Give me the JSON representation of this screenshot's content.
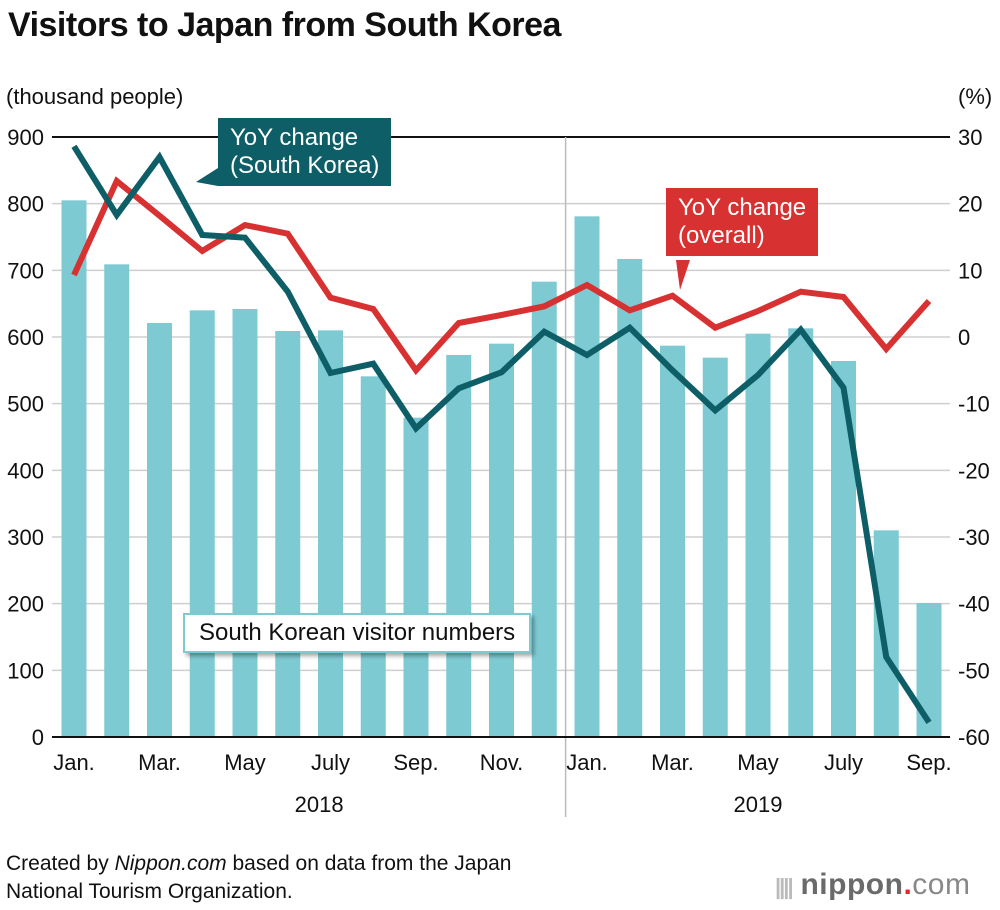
{
  "chart_data": {
    "type": "bar+line",
    "title": "Visitors to Japan from South Korea",
    "ylabel_left": "(thousand people)",
    "ylabel_right": "(%)",
    "ylim_left": [
      0,
      900
    ],
    "ylim_right": [
      -60,
      30
    ],
    "left_ticks": [
      "0",
      "100",
      "200",
      "300",
      "400",
      "500",
      "600",
      "700",
      "800",
      "900"
    ],
    "right_ticks": [
      "-60",
      "-50",
      "-40",
      "-30",
      "-20",
      "-10",
      "0",
      "10",
      "20",
      "30"
    ],
    "categories": [
      "Jan. 2018",
      "Feb. 2018",
      "Mar. 2018",
      "Apr. 2018",
      "May 2018",
      "Jun. 2018",
      "Jul. 2018",
      "Aug. 2018",
      "Sep. 2018",
      "Oct. 2018",
      "Nov. 2018",
      "Dec. 2018",
      "Jan. 2019",
      "Feb. 2019",
      "Mar. 2019",
      "Apr. 2019",
      "May 2019",
      "Jun. 2019",
      "Jul. 2019",
      "Aug. 2019",
      "Sep. 2019"
    ],
    "x_tick_labels": [
      "Jan.",
      "",
      "Mar.",
      "",
      "May",
      "",
      "July",
      "",
      "Sep.",
      "",
      "Nov.",
      "",
      "Jan.",
      "",
      "Mar.",
      "",
      "May",
      "",
      "July",
      "",
      "Sep."
    ],
    "year_labels": [
      "2018",
      "2019"
    ],
    "series": [
      {
        "name": "South Korean visitor numbers",
        "type": "bar",
        "axis": "left",
        "color": "#7ecad3",
        "values": [
          805,
          709,
          621,
          640,
          642,
          609,
          610,
          541,
          479,
          573,
          590,
          683,
          781,
          717,
          587,
          569,
          605,
          613,
          564,
          310,
          201
        ]
      },
      {
        "name": "YoY change (South Korea)",
        "type": "line",
        "axis": "right",
        "color": "#0d5e66",
        "values": [
          28.6,
          18.3,
          27,
          15.3,
          14.9,
          6.8,
          -5.4,
          -4,
          -13.7,
          -7.7,
          -5.3,
          0.8,
          -2.7,
          1.4,
          -5,
          -11,
          -5.7,
          1.1,
          -7.6,
          -48,
          -57.8
        ]
      },
      {
        "name": "YoY change (overall)",
        "type": "line",
        "axis": "right",
        "color": "#d83131",
        "values": [
          9.3,
          23.4,
          18.2,
          12.9,
          16.8,
          15.5,
          5.9,
          4.2,
          -5,
          2.1,
          3.3,
          4.6,
          7.8,
          4,
          6.2,
          1.4,
          3.9,
          6.8,
          6,
          -1.8,
          5.4
        ]
      }
    ],
    "annotations": {
      "korea": [
        "YoY change",
        "(South Korea)"
      ],
      "overall": [
        "YoY change",
        "(overall)"
      ],
      "bars": "South Korean visitor numbers"
    }
  },
  "credit": {
    "prefix": "Created by ",
    "source": "Nippon.com",
    "suffix": " based on data from the Japan",
    "line2": "National Tourism Organization."
  },
  "logo": {
    "name": "nippon",
    "dot": ".",
    "com": "com"
  }
}
